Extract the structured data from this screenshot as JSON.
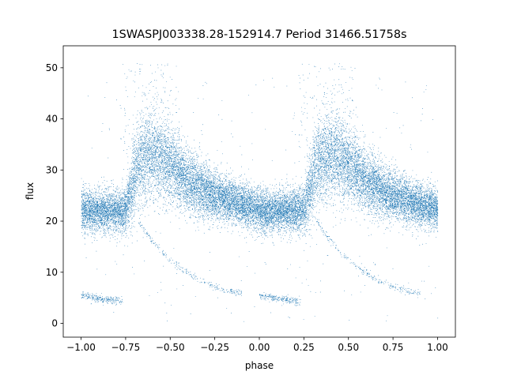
{
  "chart_data": {
    "type": "scatter",
    "title": "1SWASPJ003338.28-152914.7 Period 31466.51758s",
    "xlabel": "phase",
    "ylabel": "flux",
    "xlim": [
      -1.1,
      1.1
    ],
    "ylim": [
      -2.7,
      54.3
    ],
    "x_ticks": [
      -1.0,
      -0.75,
      -0.5,
      -0.25,
      0.0,
      0.25,
      0.5,
      0.75,
      1.0
    ],
    "x_tick_labels": [
      "−1.00",
      "−0.75",
      "−0.50",
      "−0.25",
      "0.00",
      "0.25",
      "0.50",
      "0.75",
      "1.00"
    ],
    "y_ticks": [
      0,
      10,
      20,
      30,
      40,
      50
    ],
    "y_tick_labels": [
      "0",
      "10",
      "20",
      "30",
      "40",
      "50"
    ],
    "grid": false,
    "legend": "none",
    "marker_color": "#1f77b4",
    "phase_period": 1.0,
    "main_band": {
      "description": "mean flux vs phase (one cycle 0..1, repeated at phase-1)",
      "phase": [
        0.0,
        0.05,
        0.1,
        0.15,
        0.2,
        0.25,
        0.28,
        0.32,
        0.36,
        0.4,
        0.45,
        0.5,
        0.55,
        0.6,
        0.65,
        0.7,
        0.75,
        0.8,
        0.85,
        0.9,
        0.95,
        1.0
      ],
      "mean_flux": [
        22.3,
        22.0,
        22.0,
        22.0,
        22.0,
        22.3,
        26.0,
        31.0,
        32.5,
        32.8,
        32.2,
        31.0,
        29.5,
        28.0,
        26.8,
        25.8,
        25.0,
        24.4,
        23.8,
        23.2,
        22.7,
        22.3
      ],
      "spread": [
        2.0,
        2.0,
        2.0,
        2.0,
        2.0,
        2.2,
        3.5,
        4.0,
        4.2,
        4.2,
        4.0,
        3.6,
        3.2,
        3.0,
        2.8,
        2.6,
        2.4,
        2.2,
        2.2,
        2.1,
        2.0,
        2.0
      ],
      "peak_upper_flux": 51.0
    },
    "faint_branch": [
      {
        "phase": 0.0,
        "flux": 5.5
      },
      {
        "phase": 0.1,
        "flux": 4.9
      },
      {
        "phase": 0.2,
        "flux": 4.5
      },
      {
        "phase": 0.23,
        "flux": 4.3
      }
    ],
    "decay_branch": [
      {
        "phase": 0.32,
        "flux": 20.0
      },
      {
        "phase": 0.38,
        "flux": 17.0
      },
      {
        "phase": 0.45,
        "flux": 14.0
      },
      {
        "phase": 0.55,
        "flux": 11.0
      },
      {
        "phase": 0.65,
        "flux": 8.8
      },
      {
        "phase": 0.75,
        "flux": 7.2
      },
      {
        "phase": 0.85,
        "flux": 6.2
      },
      {
        "phase": 0.9,
        "flux": 6.0
      }
    ]
  }
}
